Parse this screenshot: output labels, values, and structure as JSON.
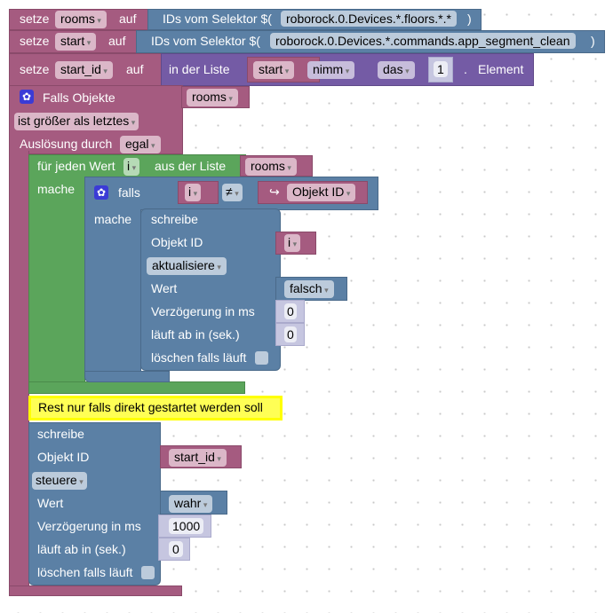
{
  "rows": [
    {
      "setze": "setze",
      "var": "rooms",
      "auf": "auf",
      "selector_label": "IDs vom Selektor $(",
      "selector": "roborock.0.Devices.*.floors.*.*",
      "close": ")"
    },
    {
      "setze": "setze",
      "var": "start",
      "auf": "auf",
      "selector_label": "IDs vom Selektor $(",
      "selector": "roborock.0.Devices.*.commands.app_segment_clean",
      "close": ")"
    },
    {
      "setze": "setze",
      "var": "start_id",
      "auf": "auf",
      "list_label": "in der Liste",
      "list_var": "start",
      "nimm": "nimm",
      "das": "das",
      "index": "1",
      "dot": ".",
      "element": "Element"
    }
  ],
  "trigger": {
    "label": "Falls Objekte",
    "objects": "rooms",
    "condition": "ist größer als letztes",
    "by_label": "Auslösung durch",
    "by": "egal"
  },
  "foreach": {
    "label": "für jeden Wert",
    "var": "i",
    "list_label": "aus der Liste",
    "list": "rooms",
    "do": "mache"
  },
  "if_block": {
    "label": "falls",
    "left": "i",
    "op": "≠",
    "right": "Objekt ID",
    "do": "mache"
  },
  "write1": {
    "title": "schreibe",
    "obj_label": "Objekt ID",
    "obj": "i",
    "mode": "aktualisiere",
    "value_label": "Wert",
    "value": "falsch",
    "delay_label": "Verzögerung in ms",
    "delay": "0",
    "expire_label": "läuft ab in (sek.)",
    "expire": "0",
    "clear_label": "löschen falls läuft"
  },
  "comment": "Rest nur falls direkt gestartet werden soll",
  "write2": {
    "title": "schreibe",
    "obj_label": "Objekt ID",
    "obj": "start_id",
    "mode": "steuere",
    "value_label": "Wert",
    "value": "wahr",
    "delay_label": "Verzögerung in ms",
    "delay": "1000",
    "expire_label": "läuft ab in (sek.)",
    "expire": "0",
    "clear_label": "löschen falls läuft"
  },
  "colors": {
    "variables": "#a55b80",
    "iobroker": "#5b80a5",
    "loops": "#5ba55b",
    "lists": "#745ba5",
    "comment": "#ffff00"
  }
}
